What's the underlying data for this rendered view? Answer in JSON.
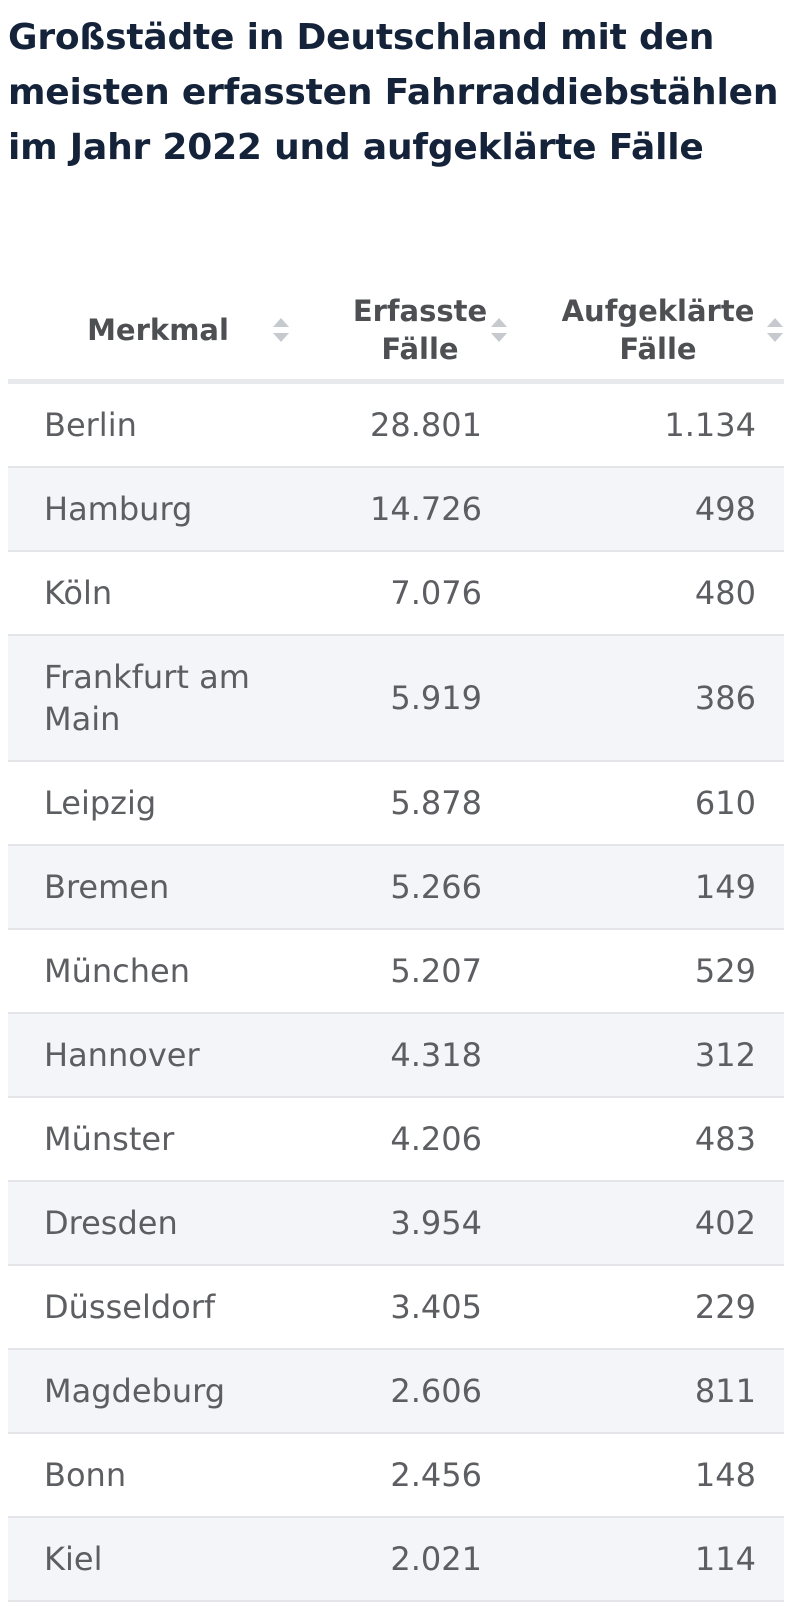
{
  "chart_data": {
    "type": "table",
    "title": "Großstädte in Deutschland mit den meisten erfassten Fahrraddiebstählen im Jahr 2022 und aufgeklärte Fälle",
    "columns": [
      {
        "label_line1": "Merkmal",
        "label_line2": ""
      },
      {
        "label_line1": "Erfasste",
        "label_line2": "Fälle"
      },
      {
        "label_line1": "Aufgeklärte",
        "label_line2": "Fälle"
      }
    ],
    "rows": [
      {
        "name": "Berlin",
        "erfasste": "28.801",
        "aufgeklaerte": "1.134"
      },
      {
        "name": "Hamburg",
        "erfasste": "14.726",
        "aufgeklaerte": "498"
      },
      {
        "name": "Köln",
        "erfasste": "7.076",
        "aufgeklaerte": "480"
      },
      {
        "name": "Frankfurt am Main",
        "erfasste": "5.919",
        "aufgeklaerte": "386"
      },
      {
        "name": "Leipzig",
        "erfasste": "5.878",
        "aufgeklaerte": "610"
      },
      {
        "name": "Bremen",
        "erfasste": "5.266",
        "aufgeklaerte": "149"
      },
      {
        "name": "München",
        "erfasste": "5.207",
        "aufgeklaerte": "529"
      },
      {
        "name": "Hannover",
        "erfasste": "4.318",
        "aufgeklaerte": "312"
      },
      {
        "name": "Münster",
        "erfasste": "4.206",
        "aufgeklaerte": "483"
      },
      {
        "name": "Dresden",
        "erfasste": "3.954",
        "aufgeklaerte": "402"
      },
      {
        "name": "Düsseldorf",
        "erfasste": "3.405",
        "aufgeklaerte": "229"
      },
      {
        "name": "Magdeburg",
        "erfasste": "2.606",
        "aufgeklaerte": "811"
      },
      {
        "name": "Bonn",
        "erfasste": "2.456",
        "aufgeklaerte": "148"
      },
      {
        "name": "Kiel",
        "erfasste": "2.021",
        "aufgeklaerte": "114"
      }
    ]
  },
  "icons": {
    "sort": "sort-arrows-icon"
  },
  "colors": {
    "title": "#142339",
    "header_text": "#4d4f53",
    "cell_text": "#5c5e62",
    "row_alt_bg": "#f3f5f9",
    "divider": "#e3e5e9",
    "sort_icon": "#c6c9ce"
  }
}
